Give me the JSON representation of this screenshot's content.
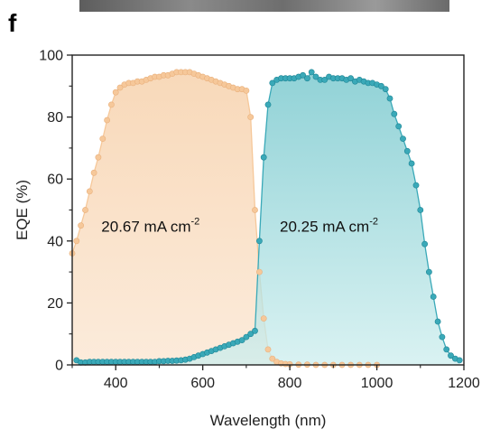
{
  "panel_label": "f",
  "colors": {
    "series1_fill": "#f7d7b5",
    "series1_marker": "#f6c89a",
    "series2_fill": "#8fd3d6",
    "series2_marker": "#3aa9b8",
    "axis": "#222222"
  },
  "chart_data": {
    "type": "area",
    "xlabel": "Wavelength (nm)",
    "ylabel": "EQE (%)",
    "xlim": [
      300,
      1200
    ],
    "ylim": [
      0,
      100
    ],
    "xticks": [
      400,
      600,
      800,
      1000,
      1200
    ],
    "yticks": [
      0,
      20,
      40,
      60,
      80,
      100
    ],
    "grid": false,
    "annotations": [
      {
        "text": "20.67 mA cm",
        "sup": "-2",
        "x": 480,
        "y": 43
      },
      {
        "text": "20.25 mA cm",
        "sup": "-2",
        "x": 890,
        "y": 43
      }
    ],
    "series": [
      {
        "x": [
          300,
          310,
          320,
          330,
          340,
          350,
          360,
          370,
          380,
          390,
          400,
          410,
          420,
          430,
          440,
          450,
          460,
          470,
          480,
          490,
          500,
          510,
          520,
          530,
          540,
          550,
          560,
          570,
          580,
          590,
          600,
          610,
          620,
          630,
          640,
          650,
          660,
          670,
          680,
          690,
          700,
          710,
          720,
          730,
          740,
          750,
          760,
          770,
          780,
          790,
          800,
          820,
          840,
          860,
          880,
          900,
          920,
          940,
          960,
          980,
          1000
        ],
        "y": [
          36,
          40,
          45,
          50,
          56,
          62,
          67,
          73,
          79,
          84,
          88,
          89.5,
          90.5,
          91,
          91,
          91.5,
          91.5,
          92,
          92.5,
          93,
          93,
          93.5,
          93.5,
          94,
          94.5,
          94.5,
          94.5,
          94.5,
          94,
          93.5,
          93,
          92.5,
          92,
          91.5,
          91,
          90.5,
          90,
          89.5,
          89,
          89,
          88.5,
          80,
          50,
          30,
          15,
          5,
          2,
          1,
          0.5,
          0.3,
          0.2,
          0.1,
          0.1,
          0,
          0,
          0,
          0,
          0,
          0,
          0,
          0
        ]
      },
      {
        "x": [
          310,
          320,
          330,
          340,
          350,
          360,
          370,
          380,
          390,
          400,
          410,
          420,
          430,
          440,
          450,
          460,
          470,
          480,
          490,
          500,
          510,
          520,
          530,
          540,
          550,
          560,
          570,
          580,
          590,
          600,
          610,
          620,
          630,
          640,
          650,
          660,
          670,
          680,
          690,
          700,
          710,
          720,
          730,
          740,
          750,
          760,
          770,
          780,
          790,
          800,
          810,
          820,
          830,
          840,
          850,
          860,
          870,
          880,
          890,
          900,
          910,
          920,
          930,
          940,
          950,
          960,
          970,
          980,
          990,
          1000,
          1010,
          1020,
          1030,
          1040,
          1050,
          1060,
          1070,
          1080,
          1090,
          1100,
          1110,
          1120,
          1130,
          1140,
          1150,
          1160,
          1170,
          1180,
          1190
        ],
        "y": [
          1.5,
          0.8,
          0.8,
          1,
          1,
          1,
          1,
          1,
          1,
          1,
          1,
          1,
          1,
          1,
          1,
          1,
          1,
          1,
          1,
          1.2,
          1.2,
          1.3,
          1.3,
          1.4,
          1.5,
          1.7,
          2,
          2.5,
          3,
          3.5,
          4,
          4.5,
          5,
          5.5,
          6,
          6.5,
          7,
          7.5,
          8,
          9,
          10,
          11,
          40,
          67,
          84,
          91,
          92,
          92.5,
          92.5,
          92.5,
          92.5,
          93,
          93.5,
          92.5,
          94.5,
          93,
          92,
          92,
          93,
          92.5,
          92.5,
          92.5,
          92,
          92.5,
          91.5,
          92,
          91.5,
          91,
          91,
          90.5,
          90,
          89,
          86,
          81,
          77,
          73,
          69,
          65,
          58,
          50,
          39,
          30,
          22,
          14,
          9,
          5,
          3,
          2,
          1.5
        ]
      }
    ]
  }
}
